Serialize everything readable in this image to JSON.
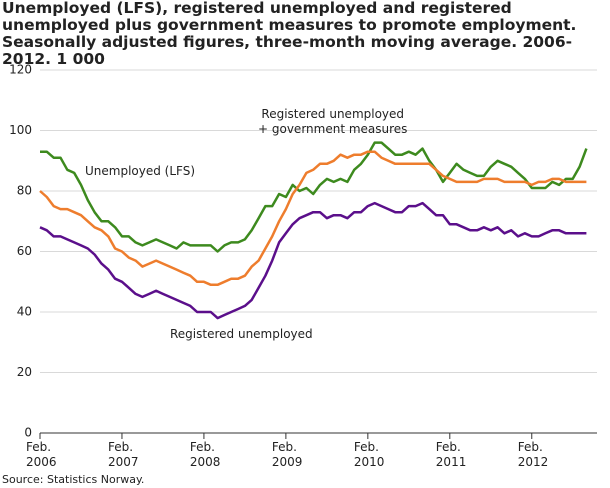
{
  "chart_data": {
    "type": "line",
    "title": "Unemployed (LFS), registered unemployed and registered unemployed plus government measures to promote employment. Seasonally adjusted figures, three-month moving average. 2006-2012. 1 000",
    "source": "Source: Statistics Norway.",
    "annotations": [
      "Unemployed (LFS)",
      "Registered unemployed\n+ government measures",
      "Registered unemployed"
    ],
    "categories": [
      "Feb.\n2006",
      null,
      null,
      null,
      null,
      null,
      null,
      null,
      null,
      null,
      null,
      null,
      "Feb.\n2007",
      null,
      null,
      null,
      null,
      null,
      null,
      null,
      null,
      null,
      null,
      null,
      "Feb.\n2008",
      null,
      null,
      null,
      null,
      null,
      null,
      null,
      null,
      null,
      null,
      null,
      "Feb.\n2009",
      null,
      null,
      null,
      null,
      null,
      null,
      null,
      null,
      null,
      null,
      null,
      "Feb.\n2010",
      null,
      null,
      null,
      null,
      null,
      null,
      null,
      null,
      null,
      null,
      null,
      "Feb.\n2011",
      null,
      null,
      null,
      null,
      null,
      null,
      null,
      null,
      null,
      null,
      null,
      "Feb.\n2012",
      null,
      null,
      null,
      null,
      null,
      null,
      null,
      null
    ],
    "series": [
      {
        "name": "Unemployed (LFS)",
        "color": "#3d8a1e",
        "values": [
          93,
          93,
          91,
          91,
          87,
          86,
          82,
          77,
          73,
          70,
          70,
          68,
          65,
          65,
          63,
          62,
          63,
          64,
          63,
          62,
          61,
          63,
          62,
          62,
          62,
          62,
          60,
          62,
          63,
          63,
          64,
          67,
          71,
          75,
          75,
          79,
          78,
          82,
          80,
          81,
          79,
          82,
          84,
          83,
          84,
          83,
          87,
          89,
          92,
          96,
          96,
          94,
          92,
          92,
          93,
          92,
          94,
          90,
          87,
          83,
          86,
          89,
          87,
          86,
          85,
          85,
          88,
          90,
          89,
          88,
          86,
          84,
          81,
          81,
          81,
          83,
          82,
          84,
          84,
          88,
          94
        ]
      },
      {
        "name": "Registered unemployed + government measures",
        "color": "#ee7d2d",
        "values": [
          80,
          78,
          75,
          74,
          74,
          73,
          72,
          70,
          68,
          67,
          65,
          61,
          60,
          58,
          57,
          55,
          56,
          57,
          56,
          55,
          54,
          53,
          52,
          50,
          50,
          49,
          49,
          50,
          51,
          51,
          52,
          55,
          57,
          61,
          65,
          70,
          74,
          79,
          82,
          86,
          87,
          89,
          89,
          90,
          92,
          91,
          92,
          92,
          93,
          93,
          91,
          90,
          89,
          89,
          89,
          89,
          89,
          89,
          87,
          85,
          84,
          83,
          83,
          83,
          83,
          84,
          84,
          84,
          83,
          83,
          83,
          83,
          82,
          83,
          83,
          84,
          84,
          83,
          83,
          83,
          83
        ]
      },
      {
        "name": "Registered unemployed",
        "color": "#5b0f8b",
        "values": [
          68,
          67,
          65,
          65,
          64,
          63,
          62,
          61,
          59,
          56,
          54,
          51,
          50,
          48,
          46,
          45,
          46,
          47,
          46,
          45,
          44,
          43,
          42,
          40,
          40,
          40,
          38,
          39,
          40,
          41,
          42,
          44,
          48,
          52,
          57,
          63,
          66,
          69,
          71,
          72,
          73,
          73,
          71,
          72,
          72,
          71,
          73,
          73,
          75,
          76,
          75,
          74,
          73,
          73,
          75,
          75,
          76,
          74,
          72,
          72,
          69,
          69,
          68,
          67,
          67,
          68,
          67,
          68,
          66,
          67,
          65,
          66,
          65,
          65,
          66,
          67,
          67,
          66,
          66,
          66,
          66
        ]
      }
    ],
    "ylim": [
      0,
      120
    ],
    "yticks": [
      0,
      20,
      40,
      60,
      80,
      100,
      120
    ],
    "grid": true
  }
}
